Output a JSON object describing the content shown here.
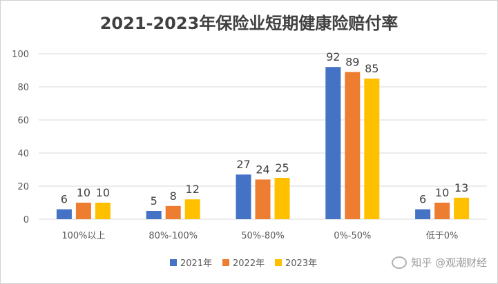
{
  "chart_data": {
    "type": "bar",
    "title": "2021-2023年保险业短期健康险赔付率",
    "categories": [
      "100%以上",
      "80%-100%",
      "50%-80%",
      "0%-50%",
      "低于0%"
    ],
    "series": [
      {
        "name": "2021年",
        "color": "#4472C4",
        "values": [
          6,
          5,
          27,
          92,
          6
        ]
      },
      {
        "name": "2022年",
        "color": "#ED7D31",
        "values": [
          10,
          8,
          24,
          89,
          10
        ]
      },
      {
        "name": "2023年",
        "color": "#FFC000",
        "values": [
          10,
          12,
          25,
          85,
          13
        ]
      }
    ],
    "ylim": [
      0,
      100
    ],
    "yticks": [
      0,
      20,
      40,
      60,
      80,
      100
    ],
    "grid": true,
    "legend": "bottom"
  },
  "watermark": "知乎 @观潮财经"
}
